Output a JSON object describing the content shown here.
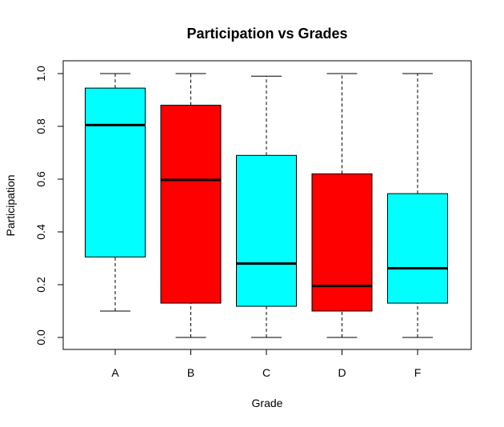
{
  "chart_data": {
    "type": "boxplot",
    "title": "Participation vs Grades",
    "xlabel": "Grade",
    "ylabel": "Participation",
    "categories": [
      "A",
      "B",
      "C",
      "D",
      "F"
    ],
    "ylim": [
      0,
      1
    ],
    "yticks": [
      "0.0",
      "0.2",
      "0.4",
      "0.6",
      "0.8",
      "1.0"
    ],
    "grid": false,
    "boxes": [
      {
        "category": "A",
        "min": 0.1,
        "q1": 0.305,
        "median": 0.805,
        "q3": 0.945,
        "max": 1.0,
        "color": "#00ffff"
      },
      {
        "category": "B",
        "min": 0.0,
        "q1": 0.13,
        "median": 0.597,
        "q3": 0.88,
        "max": 1.0,
        "color": "#ff0000"
      },
      {
        "category": "C",
        "min": 0.0,
        "q1": 0.118,
        "median": 0.28,
        "q3": 0.69,
        "max": 0.99,
        "color": "#00ffff"
      },
      {
        "category": "D",
        "min": 0.0,
        "q1": 0.1,
        "median": 0.195,
        "q3": 0.62,
        "max": 1.0,
        "color": "#ff0000"
      },
      {
        "category": "F",
        "min": 0.0,
        "q1": 0.13,
        "median": 0.262,
        "q3": 0.545,
        "max": 1.0,
        "color": "#00ffff"
      }
    ]
  }
}
